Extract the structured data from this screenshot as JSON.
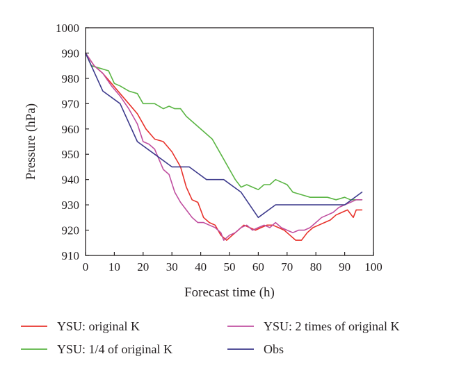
{
  "chart_data": {
    "type": "line",
    "xlabel": "Forecast time (h)",
    "ylabel": "Pressure (hPa)",
    "xlim": [
      0,
      100
    ],
    "ylim": [
      910,
      1000
    ],
    "xticks": [
      0,
      10,
      20,
      30,
      40,
      50,
      60,
      70,
      80,
      90,
      100
    ],
    "yticks": [
      910,
      920,
      930,
      940,
      950,
      960,
      970,
      980,
      990,
      1000
    ],
    "grid": false,
    "legend_position": "bottom",
    "series": [
      {
        "name": "YSU: original K",
        "color": "#e8322b",
        "points": [
          [
            0,
            990
          ],
          [
            3,
            985
          ],
          [
            6,
            982
          ],
          [
            9,
            978
          ],
          [
            12,
            974
          ],
          [
            15,
            970
          ],
          [
            18,
            966
          ],
          [
            21,
            960
          ],
          [
            24,
            956
          ],
          [
            27,
            955
          ],
          [
            30,
            951
          ],
          [
            33,
            945
          ],
          [
            35,
            937
          ],
          [
            37,
            932
          ],
          [
            39,
            931
          ],
          [
            41,
            925
          ],
          [
            43,
            923
          ],
          [
            45,
            922
          ],
          [
            47,
            918
          ],
          [
            49,
            916
          ],
          [
            51,
            918
          ],
          [
            53,
            920
          ],
          [
            55,
            922
          ],
          [
            57,
            921
          ],
          [
            59,
            920
          ],
          [
            61,
            921
          ],
          [
            63,
            922
          ],
          [
            65,
            922
          ],
          [
            67,
            921
          ],
          [
            69,
            920
          ],
          [
            71,
            918
          ],
          [
            73,
            916
          ],
          [
            75,
            916
          ],
          [
            77,
            919
          ],
          [
            79,
            921
          ],
          [
            81,
            922
          ],
          [
            83,
            923
          ],
          [
            85,
            924
          ],
          [
            87,
            926
          ],
          [
            89,
            927
          ],
          [
            91,
            928
          ],
          [
            93,
            925
          ],
          [
            94,
            928
          ],
          [
            96,
            928
          ]
        ]
      },
      {
        "name": "YSU: 1/4 of original K",
        "color": "#5bb544",
        "points": [
          [
            0,
            990
          ],
          [
            2,
            985
          ],
          [
            5,
            984
          ],
          [
            8,
            983
          ],
          [
            10,
            978
          ],
          [
            12,
            977
          ],
          [
            15,
            975
          ],
          [
            18,
            974
          ],
          [
            20,
            970
          ],
          [
            24,
            970
          ],
          [
            27,
            968
          ],
          [
            29,
            969
          ],
          [
            31,
            968
          ],
          [
            33,
            968
          ],
          [
            35,
            965
          ],
          [
            38,
            962
          ],
          [
            41,
            959
          ],
          [
            44,
            956
          ],
          [
            47,
            950
          ],
          [
            50,
            944
          ],
          [
            52,
            940
          ],
          [
            54,
            937
          ],
          [
            56,
            938
          ],
          [
            58,
            937
          ],
          [
            60,
            936
          ],
          [
            62,
            938
          ],
          [
            64,
            938
          ],
          [
            66,
            940
          ],
          [
            68,
            939
          ],
          [
            70,
            938
          ],
          [
            72,
            935
          ],
          [
            75,
            934
          ],
          [
            78,
            933
          ],
          [
            81,
            933
          ],
          [
            84,
            933
          ],
          [
            87,
            932
          ],
          [
            90,
            933
          ],
          [
            92,
            932
          ],
          [
            94,
            932
          ],
          [
            96,
            932
          ]
        ]
      },
      {
        "name": "YSU: 2 times of original K",
        "color": "#c04fa0",
        "points": [
          [
            0,
            990
          ],
          [
            3,
            985
          ],
          [
            6,
            982
          ],
          [
            9,
            977
          ],
          [
            12,
            973
          ],
          [
            15,
            968
          ],
          [
            18,
            962
          ],
          [
            20,
            955
          ],
          [
            22,
            954
          ],
          [
            24,
            952
          ],
          [
            27,
            944
          ],
          [
            29,
            942
          ],
          [
            31,
            935
          ],
          [
            33,
            931
          ],
          [
            35,
            928
          ],
          [
            37,
            925
          ],
          [
            39,
            923
          ],
          [
            41,
            923
          ],
          [
            43,
            922
          ],
          [
            45,
            921
          ],
          [
            47,
            919
          ],
          [
            48,
            916
          ],
          [
            50,
            918
          ],
          [
            52,
            919
          ],
          [
            54,
            921
          ],
          [
            56,
            922
          ],
          [
            58,
            920
          ],
          [
            60,
            921
          ],
          [
            62,
            922
          ],
          [
            64,
            921
          ],
          [
            66,
            923
          ],
          [
            68,
            921
          ],
          [
            70,
            920
          ],
          [
            72,
            919
          ],
          [
            74,
            920
          ],
          [
            76,
            920
          ],
          [
            78,
            921
          ],
          [
            80,
            923
          ],
          [
            82,
            925
          ],
          [
            84,
            926
          ],
          [
            86,
            927
          ],
          [
            88,
            929
          ],
          [
            90,
            930
          ],
          [
            92,
            931
          ],
          [
            94,
            932
          ],
          [
            96,
            932
          ]
        ]
      },
      {
        "name": "Obs",
        "color": "#3d3a8c",
        "points": [
          [
            0,
            990
          ],
          [
            6,
            975
          ],
          [
            12,
            970
          ],
          [
            18,
            955
          ],
          [
            24,
            950
          ],
          [
            30,
            945
          ],
          [
            36,
            945
          ],
          [
            42,
            940
          ],
          [
            48,
            940
          ],
          [
            54,
            935
          ],
          [
            60,
            925
          ],
          [
            66,
            930
          ],
          [
            72,
            930
          ],
          [
            78,
            930
          ],
          [
            84,
            930
          ],
          [
            90,
            930
          ],
          [
            96,
            935
          ]
        ]
      }
    ]
  }
}
